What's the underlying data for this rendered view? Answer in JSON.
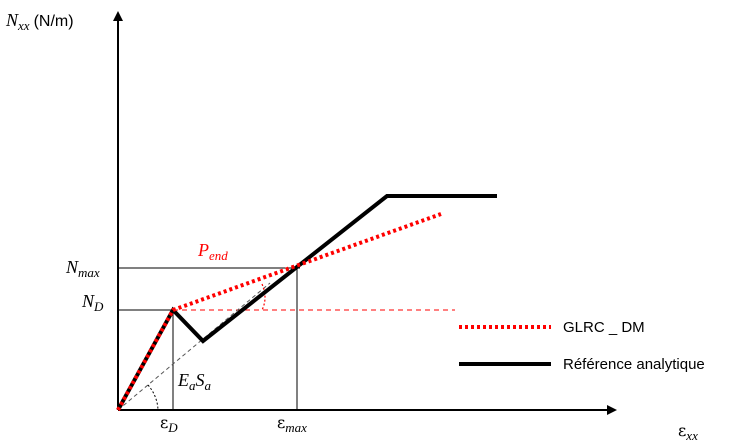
{
  "axes": {
    "y_label": {
      "main": "N",
      "sub": "xx",
      "unit": "(N/m)"
    },
    "x_label": {
      "main": "ε",
      "sub": "xx"
    }
  },
  "labels": {
    "n_max": {
      "main": "N",
      "sub": "max"
    },
    "n_d": {
      "main": "N",
      "sub": "D"
    },
    "eps_d": {
      "main": "ε",
      "sub": "D"
    },
    "eps_max": {
      "main": "ε",
      "sub": "max"
    },
    "p_end": {
      "main": "P",
      "sub": "end"
    },
    "ea_sa": {
      "a": "E",
      "a_sub": "a",
      "b": "S",
      "b_sub": "a"
    }
  },
  "legend": {
    "glrc": "GLRC _ DM",
    "reference": "Référence analytique"
  },
  "colors": {
    "glrc": "#ff0000",
    "reference": "#000000",
    "guide": "#000000",
    "red_guide": "#ff0000"
  }
}
